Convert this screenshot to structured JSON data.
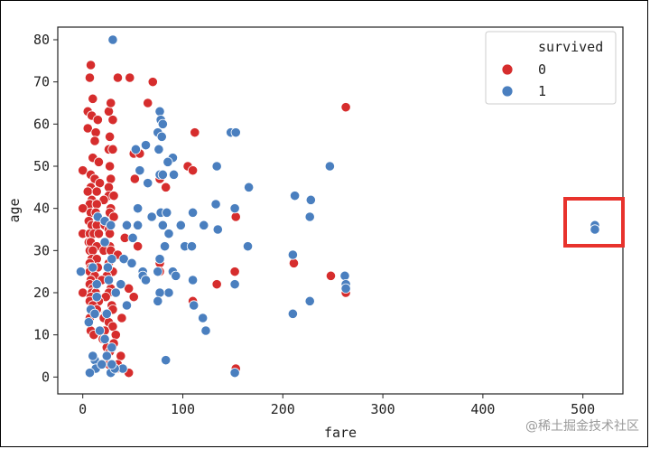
{
  "chart_data": {
    "type": "scatter",
    "xlabel": "fare",
    "ylabel": "age",
    "xlim": [
      -25,
      540
    ],
    "ylim": [
      -4,
      83
    ],
    "xticks": [
      0,
      100,
      200,
      300,
      400,
      500
    ],
    "yticks": [
      0,
      10,
      20,
      30,
      40,
      50,
      60,
      70,
      80
    ],
    "grid": false,
    "legend": {
      "title": "survived",
      "placement": "top-right"
    },
    "series": [
      {
        "name": "0",
        "color": "#d62d2d",
        "points": [
          [
            8,
            74
          ],
          [
            7,
            71
          ],
          [
            35,
            71
          ],
          [
            47,
            71
          ],
          [
            70,
            70
          ],
          [
            65,
            65
          ],
          [
            263,
            64
          ],
          [
            10,
            66
          ],
          [
            5,
            63
          ],
          [
            26,
            63
          ],
          [
            28,
            65
          ],
          [
            9,
            62
          ],
          [
            15,
            61
          ],
          [
            30,
            61
          ],
          [
            5,
            59
          ],
          [
            13,
            58
          ],
          [
            27,
            57
          ],
          [
            112,
            58
          ],
          [
            12,
            56
          ],
          [
            26,
            54
          ],
          [
            30,
            54
          ],
          [
            51,
            53
          ],
          [
            57,
            53
          ],
          [
            10,
            52
          ],
          [
            16,
            51
          ],
          [
            27,
            50
          ],
          [
            105,
            50
          ],
          [
            110,
            49
          ],
          [
            0,
            49
          ],
          [
            8,
            48
          ],
          [
            12,
            47
          ],
          [
            28,
            47
          ],
          [
            52,
            47
          ],
          [
            77,
            47
          ],
          [
            17,
            46
          ],
          [
            8,
            45
          ],
          [
            26,
            45
          ],
          [
            83,
            45
          ],
          [
            5,
            44
          ],
          [
            14,
            44
          ],
          [
            26,
            43
          ],
          [
            31,
            43
          ],
          [
            9,
            42
          ],
          [
            21,
            42
          ],
          [
            7,
            41
          ],
          [
            14,
            41
          ],
          [
            28,
            40
          ],
          [
            0,
            40
          ],
          [
            8,
            39
          ],
          [
            13,
            39
          ],
          [
            27,
            39
          ],
          [
            31,
            38
          ],
          [
            153,
            38
          ],
          [
            6,
            37
          ],
          [
            9,
            36
          ],
          [
            14,
            36
          ],
          [
            22,
            36
          ],
          [
            26,
            35
          ],
          [
            0,
            34
          ],
          [
            7,
            34
          ],
          [
            11,
            34
          ],
          [
            16,
            34
          ],
          [
            27,
            34
          ],
          [
            42,
            33
          ],
          [
            6,
            32
          ],
          [
            8,
            32
          ],
          [
            14,
            31
          ],
          [
            27,
            31
          ],
          [
            55,
            31
          ],
          [
            7,
            30
          ],
          [
            10,
            30
          ],
          [
            21,
            30
          ],
          [
            28,
            30
          ],
          [
            35,
            29
          ],
          [
            9,
            28
          ],
          [
            14,
            28
          ],
          [
            7,
            27
          ],
          [
            26,
            27
          ],
          [
            211,
            27
          ],
          [
            77,
            27
          ],
          [
            8,
            26
          ],
          [
            15,
            26
          ],
          [
            7,
            25
          ],
          [
            30,
            25
          ],
          [
            77,
            25
          ],
          [
            152,
            25
          ],
          [
            12,
            24
          ],
          [
            24,
            24
          ],
          [
            248,
            24
          ],
          [
            8,
            23
          ],
          [
            19,
            23
          ],
          [
            134,
            22
          ],
          [
            7,
            22
          ],
          [
            10,
            21
          ],
          [
            28,
            21
          ],
          [
            46,
            21
          ],
          [
            0,
            20
          ],
          [
            9,
            20
          ],
          [
            13,
            20
          ],
          [
            26,
            20
          ],
          [
            263,
            20
          ],
          [
            8,
            19
          ],
          [
            15,
            19
          ],
          [
            23,
            19
          ],
          [
            51,
            19
          ],
          [
            7,
            18
          ],
          [
            16,
            18
          ],
          [
            110,
            18
          ],
          [
            10,
            17
          ],
          [
            29,
            17
          ],
          [
            30,
            16
          ],
          [
            14,
            16
          ],
          [
            23,
            15
          ],
          [
            7,
            14
          ],
          [
            21,
            14
          ],
          [
            39,
            14
          ],
          [
            26,
            13
          ],
          [
            30,
            12
          ],
          [
            8,
            11
          ],
          [
            22,
            11
          ],
          [
            11,
            10
          ],
          [
            33,
            10
          ],
          [
            20,
            9
          ],
          [
            31,
            8
          ],
          [
            24,
            7
          ],
          [
            27,
            6
          ],
          [
            38,
            5
          ],
          [
            46,
            1
          ],
          [
            34,
            2
          ],
          [
            153,
            2
          ],
          [
            26,
            3
          ],
          [
            35,
            3
          ]
        ]
      },
      {
        "name": "1",
        "color": "#4a7fbf",
        "points": [
          [
            30,
            80
          ],
          [
            77,
            63
          ],
          [
            78,
            61
          ],
          [
            80,
            60
          ],
          [
            148,
            58
          ],
          [
            153,
            58
          ],
          [
            75,
            58
          ],
          [
            79,
            57
          ],
          [
            63,
            55
          ],
          [
            53,
            54
          ],
          [
            76,
            54
          ],
          [
            90,
            52
          ],
          [
            85,
            51
          ],
          [
            134,
            50
          ],
          [
            247,
            50
          ],
          [
            57,
            49
          ],
          [
            77,
            48
          ],
          [
            80,
            48
          ],
          [
            91,
            48
          ],
          [
            65,
            46
          ],
          [
            166,
            45
          ],
          [
            212,
            43
          ],
          [
            228,
            42
          ],
          [
            133,
            41
          ],
          [
            110,
            39
          ],
          [
            152,
            40
          ],
          [
            121,
            36
          ],
          [
            135,
            35
          ],
          [
            55,
            40
          ],
          [
            78,
            39
          ],
          [
            84,
            39
          ],
          [
            69,
            38
          ],
          [
            227,
            38
          ],
          [
            15,
            38
          ],
          [
            22,
            37
          ],
          [
            28,
            36
          ],
          [
            44,
            36
          ],
          [
            55,
            36
          ],
          [
            98,
            36
          ],
          [
            80,
            36
          ],
          [
            86,
            34
          ],
          [
            512,
            36
          ],
          [
            512,
            35
          ],
          [
            165,
            31
          ],
          [
            50,
            33
          ],
          [
            102,
            31
          ],
          [
            109,
            31
          ],
          [
            82,
            31
          ],
          [
            210,
            29
          ],
          [
            22,
            32
          ],
          [
            29,
            28
          ],
          [
            41,
            28
          ],
          [
            77,
            28
          ],
          [
            60,
            25
          ],
          [
            90,
            25
          ],
          [
            49,
            27
          ],
          [
            75,
            25
          ],
          [
            93,
            24
          ],
          [
            110,
            23
          ],
          [
            262,
            24
          ],
          [
            60,
            24
          ],
          [
            10,
            26
          ],
          [
            25,
            26
          ],
          [
            14,
            22
          ],
          [
            26,
            23
          ],
          [
            38,
            22
          ],
          [
            63,
            23
          ],
          [
            152,
            22
          ],
          [
            263,
            22
          ],
          [
            263,
            21
          ],
          [
            86,
            20
          ],
          [
            77,
            20
          ],
          [
            -2,
            25
          ],
          [
            8,
            16
          ],
          [
            12,
            15
          ],
          [
            24,
            15
          ],
          [
            227,
            18
          ],
          [
            44,
            17
          ],
          [
            75,
            18
          ],
          [
            111,
            17
          ],
          [
            210,
            15
          ],
          [
            120,
            14
          ],
          [
            123,
            11
          ],
          [
            33,
            20
          ],
          [
            14,
            19
          ],
          [
            6,
            13
          ],
          [
            17,
            11
          ],
          [
            22,
            9
          ],
          [
            29,
            7
          ],
          [
            24,
            5
          ],
          [
            12,
            4
          ],
          [
            13,
            2
          ],
          [
            7,
            1
          ],
          [
            28,
            1
          ],
          [
            40,
            2
          ],
          [
            83,
            4
          ],
          [
            152,
            1
          ],
          [
            32,
            2
          ],
          [
            19,
            3
          ],
          [
            10,
            5
          ],
          [
            29,
            3
          ]
        ]
      }
    ]
  },
  "watermark": "@稀土掘金技术社区"
}
